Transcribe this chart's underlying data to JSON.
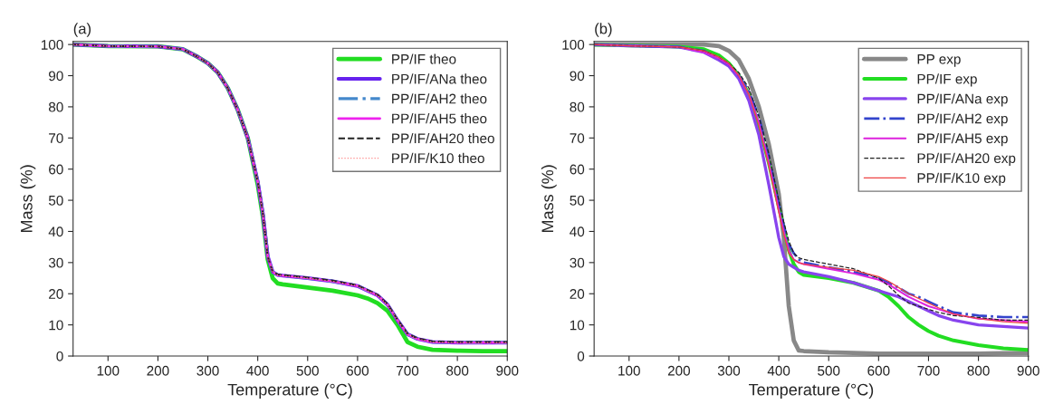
{
  "chart_data": [
    {
      "type": "line",
      "title": "(a)",
      "xlabel": "Temperature (°C)",
      "ylabel": "Mass (%)",
      "xlim": [
        30,
        900
      ],
      "ylim": [
        0,
        101
      ],
      "xticks": [
        100,
        200,
        300,
        400,
        500,
        600,
        700,
        800,
        900
      ],
      "yticks": [
        0,
        10,
        20,
        30,
        40,
        50,
        60,
        70,
        80,
        90,
        100
      ],
      "legend": "top right",
      "grid": false,
      "x": [
        30,
        100,
        200,
        250,
        280,
        300,
        320,
        340,
        360,
        380,
        400,
        410,
        420,
        430,
        440,
        450,
        500,
        550,
        600,
        620,
        640,
        660,
        680,
        700,
        720,
        750,
        800,
        850,
        900
      ],
      "series": [
        {
          "name": "PP/IF theo",
          "color": "#22dd22",
          "line_style": "solid",
          "values": [
            100,
            99.5,
            99.4,
            98.5,
            96,
            94,
            91,
            86,
            79,
            70,
            55,
            45,
            31,
            25,
            23.3,
            23,
            22,
            21,
            19.5,
            18.5,
            17,
            14.5,
            10,
            4.5,
            3,
            2,
            1.7,
            1.6,
            1.6
          ]
        },
        {
          "name": "PP/IF/ANa theo",
          "color": "#6622ee",
          "line_style": "solid",
          "values": [
            100,
            99.5,
            99.4,
            98.5,
            96,
            94,
            91,
            86,
            79,
            70,
            56,
            46,
            32,
            27,
            26,
            25.8,
            25,
            24,
            22.5,
            21,
            19.5,
            16.5,
            11.5,
            7,
            5.5,
            4.5,
            4.3,
            4.3,
            4.3
          ]
        },
        {
          "name": "PP/IF/AH2 theo",
          "color": "#4488cc",
          "line_style": "dashdot",
          "values": [
            100,
            99.5,
            99.4,
            98.5,
            96,
            94,
            91,
            86,
            79,
            70,
            56,
            46,
            32,
            27,
            26,
            25.8,
            25,
            24,
            22.5,
            21,
            19.5,
            16.5,
            11.5,
            7,
            5.5,
            4.5,
            4.3,
            4.3,
            4.3
          ]
        },
        {
          "name": "PP/IF/AH5 theo",
          "color": "#ee22ee",
          "line_style": "solid",
          "values": [
            100,
            99.5,
            99.4,
            98.5,
            96,
            94,
            91,
            86,
            79,
            70,
            56,
            46,
            32,
            27,
            26,
            25.8,
            25,
            24,
            22.5,
            21,
            19.5,
            16.5,
            11.5,
            7,
            5.5,
            4.5,
            4.3,
            4.3,
            4.3
          ]
        },
        {
          "name": "PP/IF/AH20 theo",
          "color": "#222222",
          "line_style": "dashed",
          "values": [
            100,
            99.5,
            99.4,
            98.5,
            96,
            94,
            91,
            86,
            79,
            70,
            56,
            46,
            32,
            27,
            26.2,
            26,
            25.2,
            24.2,
            22.7,
            21.2,
            19.7,
            16.7,
            11.7,
            7.2,
            5.7,
            4.7,
            4.5,
            4.5,
            4.5
          ]
        },
        {
          "name": "PP/IF/K10 theo",
          "color": "#ff8888",
          "line_style": "dotted",
          "values": [
            100,
            99.5,
            99.4,
            98.5,
            96,
            94,
            91,
            86,
            79,
            70,
            56,
            46,
            32,
            27,
            26,
            25.8,
            25,
            24,
            22.5,
            21,
            19.5,
            16.5,
            11.5,
            7,
            5.5,
            4.5,
            4.3,
            4.3,
            4.3
          ]
        }
      ]
    },
    {
      "type": "line",
      "title": "(b)",
      "xlabel": "Temperature (°C)",
      "ylabel": "Mass (%)",
      "xlim": [
        30,
        900
      ],
      "ylim": [
        0,
        101
      ],
      "xticks": [
        100,
        200,
        300,
        400,
        500,
        600,
        700,
        800,
        900
      ],
      "yticks": [
        0,
        10,
        20,
        30,
        40,
        50,
        60,
        70,
        80,
        90,
        100
      ],
      "legend": "top right",
      "grid": false,
      "x": [
        30,
        100,
        200,
        250,
        280,
        300,
        320,
        340,
        360,
        380,
        400,
        410,
        420,
        430,
        440,
        450,
        500,
        550,
        600,
        620,
        640,
        660,
        680,
        700,
        720,
        750,
        800,
        850,
        900
      ],
      "series": [
        {
          "name": "PP exp",
          "color": "#888888",
          "line_style": "solid",
          "values": [
            100,
            100,
            100,
            100,
            99.5,
            98,
            95,
            89,
            80,
            68,
            52,
            38,
            16,
            5,
            1.8,
            1.6,
            1.2,
            1,
            0.8,
            0.8,
            0.8,
            0.8,
            0.8,
            0.8,
            0.8,
            0.8,
            0.8,
            0.9,
            1
          ]
        },
        {
          "name": "PP/IF exp",
          "color": "#22dd22",
          "line_style": "solid",
          "values": [
            100,
            99.7,
            99.3,
            98.5,
            96.5,
            94,
            90,
            84,
            74,
            62,
            48,
            41,
            34,
            29.5,
            27,
            26,
            25,
            23.5,
            21,
            19,
            16,
            12.5,
            10,
            8,
            6.5,
            5,
            3.5,
            2.5,
            2
          ]
        },
        {
          "name": "PP/IF/ANa exp",
          "color": "#8844ee",
          "line_style": "solid",
          "values": [
            100,
            99.6,
            99.2,
            97.5,
            95,
            93,
            89,
            82,
            71,
            55,
            38,
            32,
            29.5,
            28.5,
            27.5,
            27,
            25.5,
            23.5,
            21,
            20,
            19,
            17.5,
            16,
            14.5,
            13,
            11.5,
            10,
            9.5,
            9
          ]
        },
        {
          "name": "PP/IF/AH2 exp",
          "color": "#3344cc",
          "line_style": "dashdot",
          "values": [
            100,
            99.6,
            99.2,
            98,
            95.5,
            93.5,
            90,
            85,
            77,
            64,
            49,
            42,
            36,
            33,
            31,
            30,
            28.5,
            27,
            25,
            23.5,
            22,
            20,
            19,
            17.5,
            16,
            14,
            13,
            12.5,
            12.5
          ]
        },
        {
          "name": "PP/IF/AH5 exp",
          "color": "#dd22dd",
          "line_style": "solid",
          "values": [
            100,
            99.6,
            99.2,
            97.5,
            95.5,
            93.5,
            90,
            84,
            75,
            62,
            47,
            40,
            34,
            31,
            30,
            29.5,
            28,
            26.5,
            24.5,
            23,
            21,
            19,
            17.5,
            16,
            15,
            13.5,
            12,
            11.5,
            11
          ]
        },
        {
          "name": "PP/IF/AH20 exp",
          "color": "#222222",
          "line_style": "dashed",
          "values": [
            100,
            99.6,
            99.2,
            98,
            96,
            94,
            91,
            86,
            77,
            65,
            50,
            43,
            37,
            33,
            31.5,
            31,
            29.5,
            28,
            25,
            22.5,
            19.5,
            17,
            16,
            15,
            14,
            13,
            12.4,
            11.5,
            11.5
          ]
        },
        {
          "name": "PP/IF/K10 exp",
          "color": "#ee4444",
          "line_style": "solid",
          "values": [
            100,
            99.6,
            99.2,
            98,
            96,
            94,
            90,
            84,
            74,
            61,
            46,
            39,
            33,
            31,
            30,
            29.5,
            28.5,
            27.5,
            25.5,
            24,
            22,
            20,
            18.5,
            17,
            15.5,
            13.5,
            12,
            11,
            10.5
          ]
        }
      ]
    }
  ]
}
